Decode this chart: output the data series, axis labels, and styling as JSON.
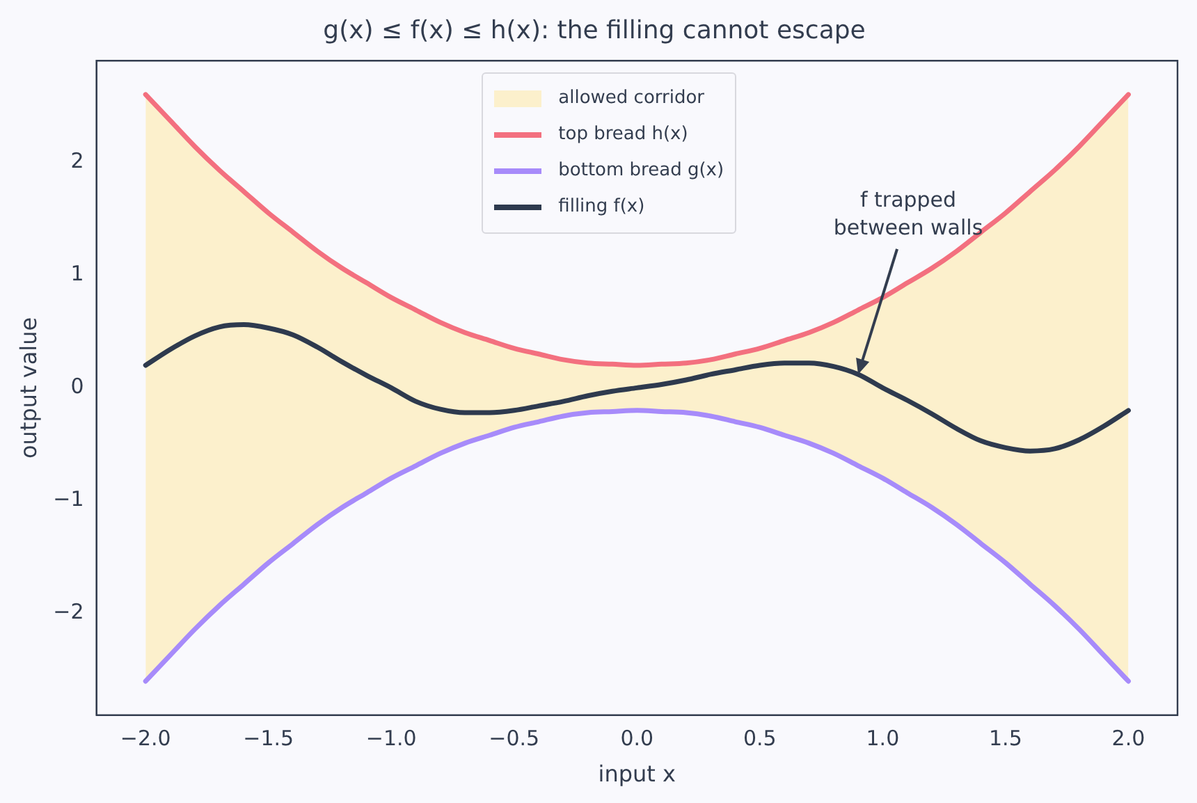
{
  "chart_data": {
    "type": "line",
    "title": "g(x) ≤ f(x) ≤ h(x): the filling cannot escape",
    "xlabel": "input x",
    "ylabel": "output value",
    "x": [
      -2,
      -1.9,
      -1.8,
      -1.7,
      -1.6,
      -1.5,
      -1.4,
      -1.3,
      -1.2,
      -1.1,
      -1,
      -0.9,
      -0.8,
      -0.7,
      -0.6,
      -0.5,
      -0.4,
      -0.3,
      -0.2,
      -0.1,
      0,
      0.1,
      0.2,
      0.3,
      0.4,
      0.5,
      0.6,
      0.7,
      0.8,
      0.9,
      1,
      1.1,
      1.2,
      1.3,
      1.4,
      1.5,
      1.6,
      1.7,
      1.8,
      1.9,
      2
    ],
    "series": [
      {
        "name": "top bread h(x)",
        "type": "line",
        "color": "#f3707f",
        "values": [
          2.6,
          2.37,
          2.14,
          1.93,
          1.74,
          1.55,
          1.38,
          1.21,
          1.06,
          0.93,
          0.8,
          0.69,
          0.58,
          0.49,
          0.42,
          0.35,
          0.3,
          0.25,
          0.22,
          0.21,
          0.2,
          0.21,
          0.22,
          0.25,
          0.3,
          0.35,
          0.42,
          0.49,
          0.58,
          0.69,
          0.8,
          0.93,
          1.06,
          1.21,
          1.38,
          1.55,
          1.74,
          1.93,
          2.14,
          2.37,
          2.6
        ]
      },
      {
        "name": "bottom bread g(x)",
        "type": "line",
        "color": "#a78bfa",
        "values": [
          -2.6,
          -2.37,
          -2.14,
          -1.93,
          -1.74,
          -1.55,
          -1.38,
          -1.21,
          -1.06,
          -0.93,
          -0.8,
          -0.69,
          -0.58,
          -0.49,
          -0.42,
          -0.35,
          -0.3,
          -0.25,
          -0.22,
          -0.21,
          -0.2,
          -0.21,
          -0.22,
          -0.25,
          -0.3,
          -0.35,
          -0.42,
          -0.49,
          -0.58,
          -0.69,
          -0.8,
          -0.93,
          -1.06,
          -1.21,
          -1.38,
          -1.55,
          -1.74,
          -1.93,
          -2.14,
          -2.37,
          -2.6
        ]
      },
      {
        "name": "filling f(x)",
        "type": "line",
        "color": "#2e3a4e",
        "values": [
          0.2,
          0.34,
          0.46,
          0.54,
          0.56,
          0.53,
          0.47,
          0.36,
          0.23,
          0.11,
          0,
          -0.12,
          -0.19,
          -0.22,
          -0.22,
          -0.2,
          -0.16,
          -0.12,
          -0.07,
          -0.03,
          0,
          0.03,
          0.07,
          0.12,
          0.16,
          0.2,
          0.22,
          0.22,
          0.19,
          0.12,
          0,
          -0.11,
          -0.23,
          -0.36,
          -0.47,
          -0.53,
          -0.56,
          -0.54,
          -0.46,
          -0.34,
          -0.2
        ],
        "upper": [
          2.6,
          2.37,
          2.14,
          1.93,
          1.74,
          1.55,
          1.38,
          1.21,
          1.06,
          0.93,
          0.8,
          0.69,
          0.58,
          0.49,
          0.42,
          0.35,
          0.3,
          0.25,
          0.22,
          0.21,
          0.2,
          0.21,
          0.22,
          0.25,
          0.3,
          0.35,
          0.42,
          0.49,
          0.58,
          0.69,
          0.8,
          0.93,
          1.06,
          1.21,
          1.38,
          1.55,
          1.74,
          1.93,
          2.14,
          2.37,
          2.6
        ],
        "lower": [
          -2.6,
          -2.37,
          -2.14,
          -1.93,
          -1.74,
          -1.55,
          -1.38,
          -1.21,
          -1.06,
          -0.93,
          -0.8,
          -0.69,
          -0.58,
          -0.49,
          -0.42,
          -0.35,
          -0.3,
          -0.25,
          -0.22,
          -0.21,
          -0.2,
          -0.21,
          -0.22,
          -0.25,
          -0.3,
          -0.35,
          -0.42,
          -0.49,
          -0.58,
          -0.69,
          -0.8,
          -0.93,
          -1.06,
          -1.21,
          -1.38,
          -1.55,
          -1.74,
          -1.93,
          -2.14,
          -2.37,
          -2.6
        ]
      }
    ],
    "annotations": [
      "allowed corridor",
      {
        "text": "f trapped\nbetween walls",
        "x": 0.9,
        "y": 0.12
      }
    ],
    "xlim": [
      -2.2,
      2.2
    ],
    "ylim": [
      -2.9,
      2.9
    ],
    "xticks": [
      {
        "value": -2,
        "label": "−2.0"
      },
      {
        "value": -1.5,
        "label": "−1.5"
      },
      {
        "value": -1,
        "label": "−1.0"
      },
      {
        "value": -0.5,
        "label": "−0.5"
      },
      {
        "value": 0,
        "label": "0.0"
      },
      {
        "value": 0.5,
        "label": "0.5"
      },
      {
        "value": 1,
        "label": "1.0"
      },
      {
        "value": 1.5,
        "label": "1.5"
      },
      {
        "value": 2,
        "label": "2.0"
      }
    ],
    "yticks": [
      {
        "value": -2,
        "label": "−2"
      },
      {
        "value": -1,
        "label": "−1"
      },
      0,
      1,
      2
    ],
    "legend": "top",
    "grid": false,
    "marker": "none",
    "line_style": "solid"
  }
}
